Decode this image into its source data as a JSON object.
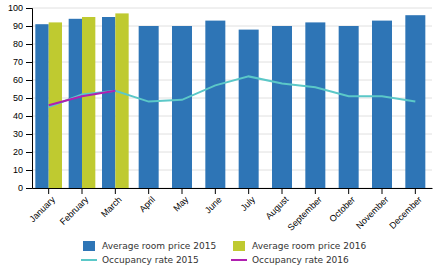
{
  "chart_data": {
    "type": "bar",
    "categories": [
      "January",
      "February",
      "March",
      "April",
      "May",
      "June",
      "July",
      "August",
      "September",
      "October",
      "November",
      "December"
    ],
    "series": [
      {
        "name": "Average room price 2015",
        "type": "bar",
        "color": "#2e75b6",
        "values": [
          91,
          94,
          95,
          90,
          90,
          93,
          88,
          90,
          92,
          90,
          93,
          96
        ]
      },
      {
        "name": "Average room price 2016",
        "type": "bar",
        "color": "#bfca30",
        "values": [
          92,
          95,
          97,
          null,
          null,
          null,
          null,
          null,
          null,
          null,
          null,
          null
        ]
      },
      {
        "name": "Occupancy rate 2015",
        "type": "line",
        "color": "#5bc8c8",
        "values": [
          45,
          52,
          54,
          48,
          49,
          57,
          62,
          58,
          56,
          51,
          51,
          48
        ]
      },
      {
        "name": "Occupancy rate 2016",
        "type": "line",
        "color": "#b020b0",
        "values": [
          46,
          51,
          54,
          null,
          null,
          null,
          null,
          null,
          null,
          null,
          null,
          null
        ]
      }
    ],
    "ylim": [
      0,
      100
    ],
    "yticks": [
      0,
      10,
      20,
      30,
      40,
      50,
      60,
      70,
      80,
      90,
      100
    ],
    "grid": true,
    "legend": "bottom"
  }
}
